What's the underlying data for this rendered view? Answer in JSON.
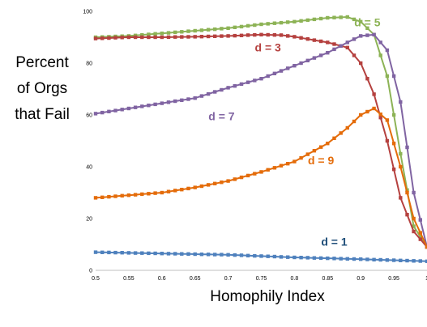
{
  "chart_data": {
    "type": "line",
    "title": "",
    "xlabel": "Homophily Index",
    "ylabel_lines": [
      "Percent",
      "of Orgs",
      "that Fail"
    ],
    "xlim": [
      0.5,
      1.0
    ],
    "ylim": [
      0,
      100
    ],
    "x_ticks": [
      "0.5",
      "0.55",
      "0.6",
      "0.65",
      "0.7",
      "0.75",
      "0.8",
      "0.85",
      "0.9",
      "0.95",
      "1"
    ],
    "y_ticks": [
      "0",
      "20",
      "40",
      "60",
      "80",
      "100"
    ],
    "grid": false,
    "legend": "none",
    "series": [
      {
        "name": "d = 5",
        "color": "#8DB356",
        "points": [
          [
            0.5,
            90
          ],
          [
            0.55,
            90.5
          ],
          [
            0.6,
            91.5
          ],
          [
            0.65,
            92.5
          ],
          [
            0.7,
            93.5
          ],
          [
            0.75,
            95
          ],
          [
            0.8,
            96
          ],
          [
            0.85,
            97.5
          ],
          [
            0.88,
            97.8
          ],
          [
            0.9,
            96
          ],
          [
            0.92,
            91
          ],
          [
            0.94,
            75
          ],
          [
            0.96,
            45
          ],
          [
            0.98,
            17
          ],
          [
            1.0,
            9
          ]
        ]
      },
      {
        "name": "d = 3",
        "color": "#B5413F",
        "points": [
          [
            0.5,
            89.5
          ],
          [
            0.55,
            90
          ],
          [
            0.6,
            90
          ],
          [
            0.65,
            90.2
          ],
          [
            0.7,
            90.5
          ],
          [
            0.75,
            91
          ],
          [
            0.78,
            90.8
          ],
          [
            0.8,
            90.2
          ],
          [
            0.85,
            88
          ],
          [
            0.88,
            86
          ],
          [
            0.9,
            80
          ],
          [
            0.92,
            68
          ],
          [
            0.94,
            50
          ],
          [
            0.96,
            28
          ],
          [
            0.98,
            15
          ],
          [
            1.0,
            9
          ]
        ]
      },
      {
        "name": "d = 7",
        "color": "#8064A2",
        "points": [
          [
            0.5,
            60.5
          ],
          [
            0.55,
            62.5
          ],
          [
            0.6,
            64.5
          ],
          [
            0.65,
            66.5
          ],
          [
            0.7,
            70.5
          ],
          [
            0.75,
            74
          ],
          [
            0.8,
            79
          ],
          [
            0.85,
            84
          ],
          [
            0.88,
            88
          ],
          [
            0.9,
            90.5
          ],
          [
            0.92,
            91
          ],
          [
            0.94,
            85
          ],
          [
            0.96,
            65
          ],
          [
            0.98,
            30
          ],
          [
            1.0,
            9
          ]
        ]
      },
      {
        "name": "d = 9",
        "color": "#E46C0A",
        "points": [
          [
            0.5,
            28
          ],
          [
            0.55,
            29
          ],
          [
            0.6,
            30
          ],
          [
            0.65,
            32
          ],
          [
            0.7,
            34.5
          ],
          [
            0.75,
            38
          ],
          [
            0.8,
            42
          ],
          [
            0.85,
            49
          ],
          [
            0.88,
            55
          ],
          [
            0.9,
            60
          ],
          [
            0.92,
            62.5
          ],
          [
            0.94,
            58
          ],
          [
            0.96,
            40
          ],
          [
            0.98,
            20
          ],
          [
            1.0,
            9
          ]
        ]
      },
      {
        "name": "d = 1",
        "color": "#4F81BD",
        "points": [
          [
            0.5,
            7
          ],
          [
            0.6,
            6.5
          ],
          [
            0.7,
            6
          ],
          [
            0.8,
            5
          ],
          [
            0.9,
            4.3
          ],
          [
            1.0,
            3.5
          ]
        ]
      }
    ],
    "labels": [
      {
        "text": "d = 5",
        "x": 0.91,
        "y": 94.2,
        "color": "#8DB356"
      },
      {
        "text": "d = 3",
        "x": 0.76,
        "y": 84.5,
        "color": "#B5413F"
      },
      {
        "text": "d = 7",
        "x": 0.69,
        "y": 58,
        "color": "#8064A2"
      },
      {
        "text": "d = 9",
        "x": 0.84,
        "y": 41,
        "color": "#E46C0A"
      },
      {
        "text": "d = 1",
        "x": 0.86,
        "y": 9.5,
        "color": "#1F4E79"
      }
    ]
  }
}
